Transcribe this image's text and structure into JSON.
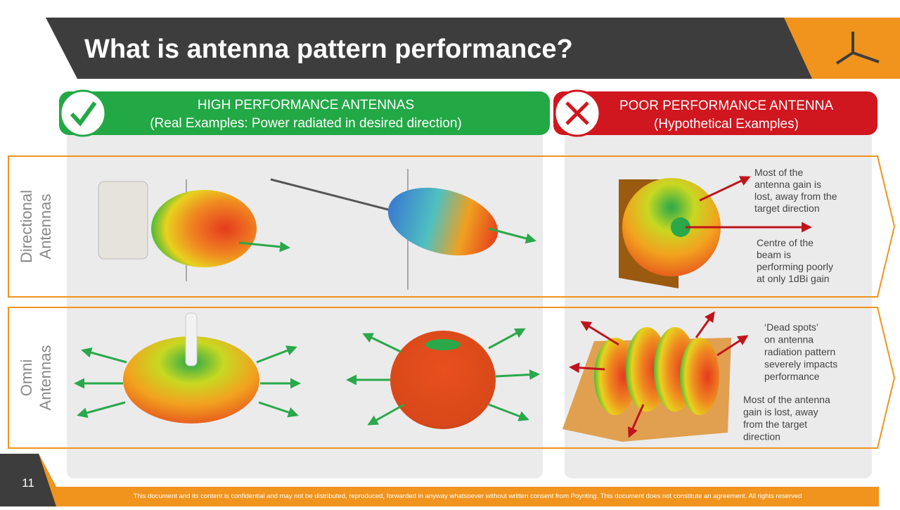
{
  "header": {
    "title": "What is antenna pattern performance?"
  },
  "good": {
    "heading": "HIGH PERFORMANCE ANTENNAS",
    "subheading": "(Real Examples: Power radiated in desired direction)"
  },
  "poor": {
    "heading": "POOR PERFORMANCE ANTENNA",
    "subheading": "(Hypothetical Examples)"
  },
  "rows": [
    {
      "label_lines": [
        "Directional",
        "Antennas"
      ]
    },
    {
      "label_lines": [
        "Omni",
        "Antennas"
      ]
    }
  ],
  "annotations": [
    {
      "lines": [
        "Most of the",
        "antenna gain is",
        "lost, away from the",
        "target direction"
      ]
    },
    {
      "lines": [
        "Centre of the",
        "beam is",
        "performing poorly",
        "at only 1dBi gain"
      ]
    },
    {
      "lines": [
        "‘Dead spots’",
        "on antenna",
        "radiation pattern",
        "severely impacts",
        "performance"
      ]
    },
    {
      "lines": [
        "Most of the antenna",
        "gain is lost, away",
        "from the target",
        "direction"
      ]
    }
  ],
  "footer": {
    "page": "11",
    "notice": "This document and its content is confidential and may not be distributed, reproduced, forwarded in anyway whatsoever without written consent from Poynting. This document does not constitute an agreement. All rights reserved"
  }
}
